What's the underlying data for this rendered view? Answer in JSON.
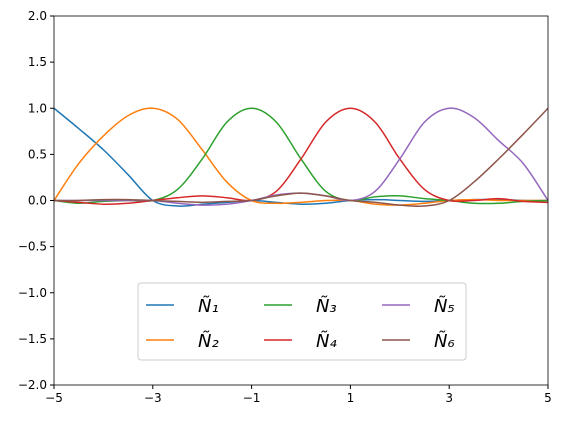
{
  "chart_data": {
    "type": "line",
    "x": [
      -5,
      -4.5,
      -4,
      -3.5,
      -3,
      -2.5,
      -2,
      -1.5,
      -1,
      -0.5,
      0,
      0.5,
      1,
      1.5,
      2,
      2.5,
      3,
      3.5,
      4,
      4.5,
      5
    ],
    "series": [
      {
        "name": "Ñ₁",
        "color": "#1f77b4",
        "values": [
          1.0,
          0.78,
          0.55,
          0.28,
          0.0,
          -0.06,
          -0.04,
          -0.02,
          0.0,
          -0.02,
          -0.04,
          -0.03,
          0.0,
          0.01,
          0.0,
          -0.01,
          0.0,
          0.01,
          0.01,
          0.0,
          0.0
        ]
      },
      {
        "name": "Ñ₂",
        "color": "#ff7f0e",
        "values": [
          0.0,
          0.4,
          0.7,
          0.92,
          1.0,
          0.88,
          0.55,
          0.2,
          0.0,
          -0.03,
          -0.02,
          0.0,
          0.0,
          -0.04,
          -0.05,
          -0.03,
          0.0,
          0.01,
          0.0,
          0.0,
          0.0
        ]
      },
      {
        "name": "Ñ₃",
        "color": "#2ca02c",
        "values": [
          0.0,
          -0.03,
          -0.01,
          0.0,
          0.0,
          0.12,
          0.45,
          0.85,
          1.0,
          0.85,
          0.45,
          0.1,
          0.0,
          0.04,
          0.05,
          0.02,
          0.0,
          -0.03,
          -0.03,
          -0.01,
          0.0
        ]
      },
      {
        "name": "Ñ₄",
        "color": "#d62728",
        "values": [
          0.0,
          -0.02,
          -0.04,
          -0.03,
          0.0,
          0.03,
          0.05,
          0.03,
          0.0,
          0.1,
          0.45,
          0.85,
          1.0,
          0.85,
          0.45,
          0.12,
          0.0,
          0.0,
          0.02,
          -0.01,
          -0.02
        ]
      },
      {
        "name": "Ñ₅",
        "color": "#9467bd",
        "values": [
          0.0,
          0.0,
          0.0,
          0.0,
          0.0,
          -0.03,
          -0.05,
          -0.04,
          0.0,
          0.06,
          0.08,
          0.05,
          0.0,
          0.1,
          0.45,
          0.85,
          1.0,
          0.9,
          0.65,
          0.4,
          0.0
        ]
      },
      {
        "name": "Ñ₆",
        "color": "#8c564b",
        "values": [
          0.0,
          0.0,
          0.01,
          0.01,
          0.0,
          -0.01,
          -0.02,
          -0.01,
          0.0,
          0.05,
          0.08,
          0.05,
          0.0,
          -0.02,
          -0.05,
          -0.06,
          0.0,
          0.2,
          0.45,
          0.72,
          1.0
        ]
      }
    ],
    "xlim": [
      -5,
      5
    ],
    "ylim": [
      -2,
      2
    ],
    "xticks": [
      {
        "value": -5,
        "label": "−5"
      },
      {
        "value": -3,
        "label": "−3"
      },
      {
        "value": -1,
        "label": "−1"
      },
      1,
      3,
      5
    ],
    "yticks": [
      {
        "value": -2,
        "label": "−2.0"
      },
      {
        "value": -1.5,
        "label": "−1.5"
      },
      {
        "value": -1,
        "label": "−1.0"
      },
      {
        "value": -0.5,
        "label": "−0.5"
      },
      {
        "value": 0,
        "label": "0.0"
      },
      {
        "value": 0.5,
        "label": "0.5"
      },
      {
        "value": 1,
        "label": "1.0"
      },
      {
        "value": 1.5,
        "label": "1.5"
      },
      {
        "value": 2,
        "label": "2.0"
      }
    ],
    "legend": "lower center"
  }
}
